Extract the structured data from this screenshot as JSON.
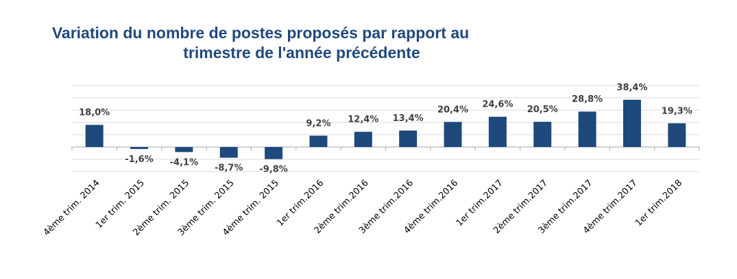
{
  "chart_data": {
    "type": "bar",
    "title_line1": "Variation du nombre de postes proposés par rapport au",
    "title_line2": "trimestre de l'année précédente",
    "categories": [
      "4ème trim. 2014",
      "1er trim. 2015",
      "2ème trim. 2015",
      "3ème trim. 2015",
      "4ème trim. 2015",
      "1er trim.2016",
      "2ème trim.2016",
      "3ème trim.2016",
      "4ème trim.2016",
      "1er trim.2017",
      "2ème trim.2017",
      "3ème trim.2017",
      "4ème trim.2017",
      "1er trim.2018"
    ],
    "values": [
      18.0,
      -1.6,
      -4.1,
      -8.7,
      -9.8,
      9.2,
      12.4,
      13.4,
      20.4,
      24.6,
      20.5,
      28.8,
      38.4,
      19.3
    ],
    "labels": [
      "18,0%",
      "-1,6%",
      "-4,1%",
      "-8,7%",
      "-9,8%",
      "9,2%",
      "12,4%",
      "13,4%",
      "20,4%",
      "24,6%",
      "20,5%",
      "28,8%",
      "38,4%",
      "19,3%"
    ],
    "ylim": [
      -20,
      50
    ],
    "grid": true,
    "bar_color": "#1F497D"
  }
}
